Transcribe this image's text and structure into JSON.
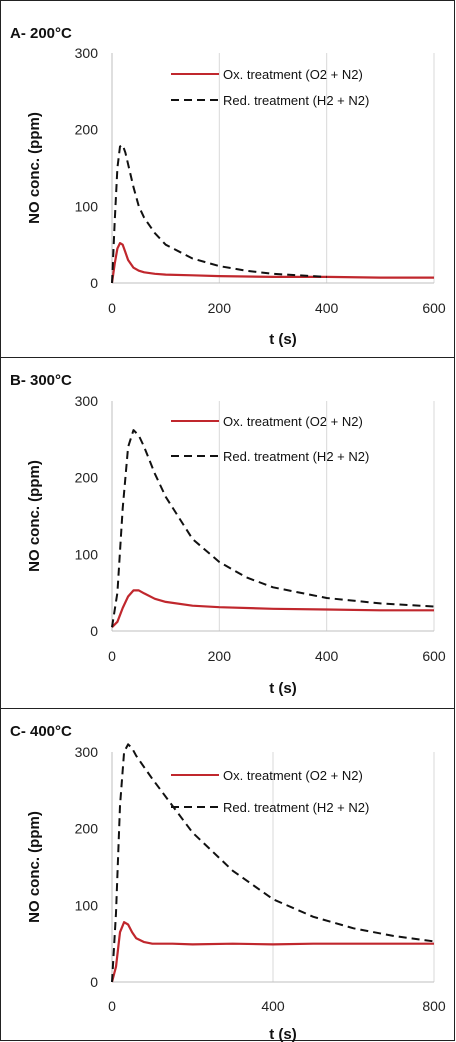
{
  "chart_data": [
    {
      "type": "line",
      "title": "A- 200°C",
      "xlabel": "t (s)",
      "ylabel": "NO conc. (ppm)",
      "xlim": [
        0,
        600
      ],
      "ylim": [
        0,
        300
      ],
      "xticks": [
        0,
        200,
        400,
        600
      ],
      "yticks": [
        0,
        100,
        200,
        300
      ],
      "grid": "vertical",
      "legend": "top-right",
      "series": [
        {
          "name": "Ox. treatment (O2 + N2)",
          "color": "#c0272d",
          "style": "solid",
          "x": [
            0,
            5,
            10,
            15,
            20,
            25,
            30,
            40,
            50,
            60,
            80,
            100,
            150,
            200,
            300,
            400,
            500,
            600
          ],
          "y": [
            0,
            25,
            45,
            52,
            50,
            40,
            30,
            20,
            16,
            14,
            12,
            11,
            10,
            9,
            8,
            8,
            7,
            7
          ]
        },
        {
          "name": "Red. treatment (H2 + N2)",
          "color": "#111111",
          "style": "dashed",
          "x": [
            0,
            5,
            10,
            15,
            20,
            25,
            30,
            40,
            50,
            60,
            80,
            100,
            150,
            200,
            250,
            300,
            400
          ],
          "y": [
            0,
            80,
            150,
            178,
            180,
            170,
            155,
            125,
            100,
            85,
            65,
            50,
            32,
            22,
            16,
            12,
            8
          ]
        }
      ]
    },
    {
      "type": "line",
      "title": "B- 300°C",
      "xlabel": "t (s)",
      "ylabel": "NO conc. (ppm)",
      "xlim": [
        0,
        600
      ],
      "ylim": [
        0,
        300
      ],
      "xticks": [
        0,
        200,
        400,
        600
      ],
      "yticks": [
        0,
        100,
        200,
        300
      ],
      "grid": "vertical",
      "legend": "top-right",
      "series": [
        {
          "name": "Ox. treatment (O2 + N2)",
          "color": "#c0272d",
          "style": "solid",
          "x": [
            0,
            10,
            20,
            30,
            40,
            50,
            60,
            80,
            100,
            150,
            200,
            300,
            400,
            500,
            600
          ],
          "y": [
            5,
            12,
            30,
            45,
            53,
            53,
            49,
            42,
            38,
            33,
            31,
            29,
            28,
            27,
            27
          ]
        },
        {
          "name": "Red. treatment (H2 + N2)",
          "color": "#111111",
          "style": "dashed",
          "x": [
            0,
            10,
            20,
            30,
            40,
            50,
            60,
            80,
            100,
            150,
            200,
            250,
            300,
            400,
            500,
            600
          ],
          "y": [
            5,
            50,
            160,
            240,
            262,
            255,
            240,
            205,
            175,
            120,
            90,
            70,
            57,
            43,
            36,
            32
          ]
        }
      ]
    },
    {
      "type": "line",
      "title": "C- 400°C",
      "xlabel": "t (s)",
      "ylabel": "NO conc. (ppm)",
      "xlim": [
        0,
        800
      ],
      "ylim": [
        0,
        300
      ],
      "xticks": [
        0,
        400,
        800
      ],
      "yticks": [
        0,
        100,
        200,
        300
      ],
      "grid": "vertical",
      "legend": "top-right",
      "series": [
        {
          "name": "Ox. treatment (O2 + N2)",
          "color": "#c0272d",
          "style": "solid",
          "x": [
            0,
            10,
            20,
            30,
            40,
            50,
            60,
            80,
            100,
            150,
            200,
            300,
            400,
            500,
            600,
            700,
            800
          ],
          "y": [
            0,
            20,
            65,
            78,
            75,
            65,
            57,
            52,
            50,
            50,
            49,
            50,
            49,
            50,
            50,
            50,
            50
          ]
        },
        {
          "name": "Red. treatment (H2 + N2)",
          "color": "#111111",
          "style": "dashed",
          "x": [
            0,
            10,
            20,
            30,
            40,
            50,
            60,
            80,
            100,
            150,
            200,
            300,
            400,
            500,
            600,
            700,
            800
          ],
          "y": [
            0,
            90,
            230,
            300,
            310,
            305,
            295,
            280,
            265,
            230,
            195,
            145,
            108,
            85,
            70,
            60,
            53
          ]
        }
      ]
    }
  ]
}
